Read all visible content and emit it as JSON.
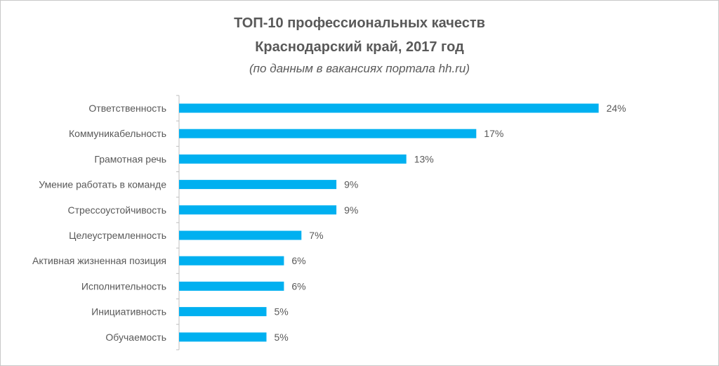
{
  "title": {
    "line1": "ТОП-10 профессиональных качеств",
    "line2": "Краснодарский край, 2017 год",
    "subtitle": "(по данным в вакансиях портала hh.ru)"
  },
  "colors": {
    "bar": "#00b0f0",
    "text": "#595959",
    "axis": "#bfbfbf"
  },
  "chart_data": {
    "type": "bar",
    "orientation": "horizontal",
    "title": "ТОП-10 профессиональных качеств Краснодарский край, 2017 год",
    "subtitle": "(по данным в вакансиях портала hh.ru)",
    "categories": [
      "Ответственность",
      "Коммуникабельность",
      "Грамотная речь",
      "Умение работать в команде",
      "Стрессоустойчивость",
      "Целеустремленность",
      "Активная жизненная позиция",
      "Исполнительность",
      "Инициативность",
      "Обучаемость"
    ],
    "values": [
      24,
      17,
      13,
      9,
      9,
      7,
      6,
      6,
      5,
      5
    ],
    "value_labels": [
      "24%",
      "17%",
      "13%",
      "9%",
      "9%",
      "7%",
      "6%",
      "6%",
      "5%",
      "5%"
    ],
    "unit": "%",
    "xlim": [
      0,
      25
    ],
    "grid": false,
    "legend": "none"
  }
}
